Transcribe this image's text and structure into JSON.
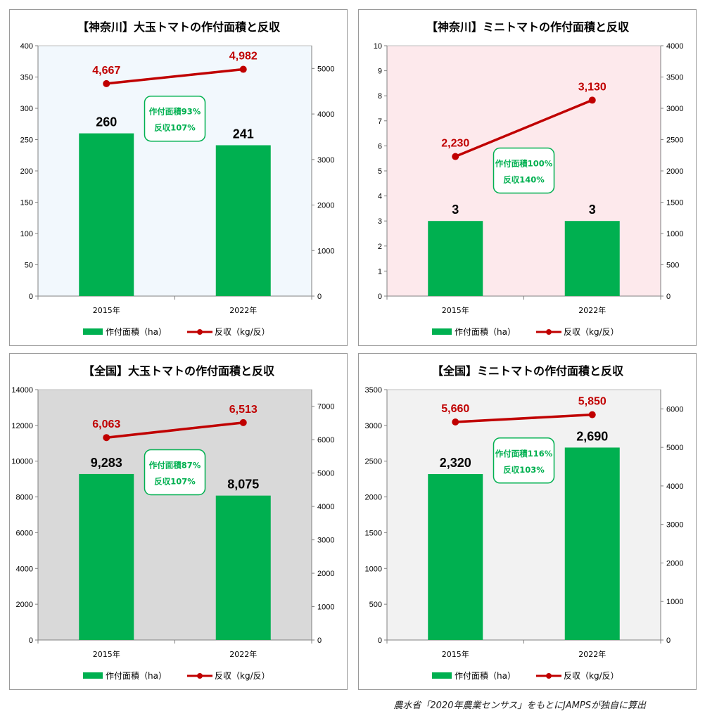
{
  "source_note": "農水省「2020年農業センサス」をもとにJAMPSが独自に算出",
  "legend": {
    "area_label": "作付面積（ha）",
    "yield_label": "反収（kg/反）"
  },
  "colors": {
    "bar": "#00b050",
    "line": "#c00000",
    "badge_text": "#00b050",
    "badge_border": "#00b050"
  },
  "chart_data": [
    {
      "type": "bar",
      "title": "【神奈川】大玉トマトの作付面積と反収",
      "categories": [
        "2015年",
        "2022年"
      ],
      "series": [
        {
          "name": "作付面積（ha）",
          "type": "bar",
          "axis": "left",
          "values": [
            260,
            241
          ],
          "labels": [
            "260",
            "241"
          ]
        },
        {
          "name": "反収（kg/反）",
          "type": "line",
          "axis": "right",
          "values": [
            4667,
            4982
          ],
          "labels": [
            "4,667",
            "4,982"
          ]
        }
      ],
      "ylim": [
        0,
        400
      ],
      "yticks": [
        0,
        50,
        100,
        150,
        200,
        250,
        300,
        350,
        400
      ],
      "y2lim": [
        0,
        5500
      ],
      "y2ticks": [
        0,
        1000,
        2000,
        3000,
        4000,
        5000
      ],
      "background": "#f2f8fd",
      "annotation": {
        "line1": "作付面積93%",
        "line2": "反収107%"
      },
      "legend_position": "bottom"
    },
    {
      "type": "bar",
      "title": "【神奈川】ミニトマトの作付面積と反収",
      "categories": [
        "2015年",
        "2022年"
      ],
      "series": [
        {
          "name": "作付面積（ha）",
          "type": "bar",
          "axis": "left",
          "values": [
            3,
            3
          ],
          "labels": [
            "3",
            "3"
          ]
        },
        {
          "name": "反収（kg/反）",
          "type": "line",
          "axis": "right",
          "values": [
            2230,
            3130
          ],
          "labels": [
            "2,230",
            "3,130"
          ]
        }
      ],
      "ylim": [
        0,
        10
      ],
      "yticks": [
        0,
        1,
        2,
        3,
        4,
        5,
        6,
        7,
        8,
        9,
        10
      ],
      "y2lim": [
        0,
        4000
      ],
      "y2ticks": [
        0,
        500,
        1000,
        1500,
        2000,
        2500,
        3000,
        3500,
        4000
      ],
      "background": "#fde9ec",
      "annotation": {
        "line1": "作付面積100%",
        "line2": "反収140%"
      },
      "legend_position": "bottom"
    },
    {
      "type": "bar",
      "title": "【全国】大玉トマトの作付面積と反収",
      "categories": [
        "2015年",
        "2022年"
      ],
      "series": [
        {
          "name": "作付面積（ha）",
          "type": "bar",
          "axis": "left",
          "values": [
            9283,
            8075
          ],
          "labels": [
            "9,283",
            "8,075"
          ]
        },
        {
          "name": "反収（kg/反）",
          "type": "line",
          "axis": "right",
          "values": [
            6063,
            6513
          ],
          "labels": [
            "6,063",
            "6,513"
          ]
        }
      ],
      "ylim": [
        0,
        14000
      ],
      "yticks": [
        0,
        2000,
        4000,
        6000,
        8000,
        10000,
        12000,
        14000
      ],
      "y2lim": [
        0,
        7500
      ],
      "y2ticks": [
        0,
        1000,
        2000,
        3000,
        4000,
        5000,
        6000,
        7000
      ],
      "background": "#d9d9d9",
      "annotation": {
        "line1": "作付面積87%",
        "line2": "反収107%"
      },
      "legend_position": "bottom"
    },
    {
      "type": "bar",
      "title": "【全国】ミニトマトの作付面積と反収",
      "categories": [
        "2015年",
        "2022年"
      ],
      "series": [
        {
          "name": "作付面積（ha）",
          "type": "bar",
          "axis": "left",
          "values": [
            2320,
            2690
          ],
          "labels": [
            "2,320",
            "2,690"
          ]
        },
        {
          "name": "反収（kg/反）",
          "type": "line",
          "axis": "right",
          "values": [
            5660,
            5850
          ],
          "labels": [
            "5,660",
            "5,850"
          ]
        }
      ],
      "ylim": [
        0,
        3500
      ],
      "yticks": [
        0,
        500,
        1000,
        1500,
        2000,
        2500,
        3000,
        3500
      ],
      "y2lim": [
        0,
        6500
      ],
      "y2ticks": [
        0,
        1000,
        2000,
        3000,
        4000,
        5000,
        6000
      ],
      "background": "#f2f2f2",
      "annotation": {
        "line1": "作付面積116%",
        "line2": "反収103%"
      },
      "legend_position": "bottom"
    }
  ]
}
